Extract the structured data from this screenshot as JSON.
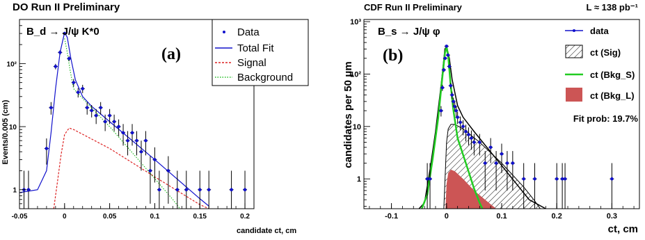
{
  "chart_data": [
    {
      "type": "scatter",
      "title": "DO Run II Preliminary",
      "process": "B_d → J/ψ K*0",
      "panel_label": "(a)",
      "xlabel": "candidate ct,  cm",
      "ylabel": "Events/0.005 (cm)",
      "x_scale": "linear",
      "y_scale": "log",
      "xlim": [
        -0.05,
        0.21
      ],
      "ylim": [
        0.5,
        500
      ],
      "x_ticks": [
        "-0.05",
        "0",
        "0.05",
        "0.1",
        "0.15",
        "0.2"
      ],
      "y_ticks": [
        "1",
        "10",
        "10²"
      ],
      "legend": [
        "Data",
        "Total Fit",
        "Signal",
        "Background"
      ],
      "legend_placement": "top-right",
      "series": [
        {
          "name": "Data",
          "kind": "points_with_errors",
          "color": "#1010cc",
          "x": [
            -0.045,
            -0.04,
            -0.02,
            -0.015,
            -0.01,
            -0.005,
            0.0,
            0.005,
            0.01,
            0.015,
            0.02,
            0.025,
            0.03,
            0.035,
            0.04,
            0.045,
            0.05,
            0.055,
            0.06,
            0.065,
            0.07,
            0.075,
            0.08,
            0.085,
            0.09,
            0.095,
            0.1,
            0.105,
            0.115,
            0.125,
            0.135,
            0.15,
            0.16,
            0.185,
            0.2
          ],
          "y": [
            1,
            1,
            4.5,
            20,
            90,
            150,
            300,
            120,
            50,
            35,
            40,
            20,
            18,
            15,
            20,
            12,
            15,
            12,
            10,
            8,
            6,
            8,
            6,
            4,
            6,
            2,
            3,
            1,
            2,
            1,
            1,
            1,
            1,
            1,
            1
          ],
          "yerr": [
            1,
            1,
            2,
            4.5,
            9,
            12,
            17,
            11,
            7,
            6,
            6,
            4.5,
            4,
            4,
            4.5,
            3.5,
            4,
            3.5,
            3,
            3,
            2.5,
            3,
            2.5,
            2,
            2.5,
            1.4,
            1.7,
            1,
            1.4,
            1,
            1,
            1,
            1,
            1,
            1
          ]
        },
        {
          "name": "Total Fit",
          "kind": "line",
          "color": "#1010cc",
          "x": [
            -0.05,
            -0.03,
            -0.02,
            -0.015,
            -0.01,
            -0.005,
            0.0,
            0.003,
            0.007,
            0.012,
            0.02,
            0.03,
            0.05,
            0.1,
            0.15,
            0.16
          ],
          "y": [
            0.9,
            1.0,
            2.0,
            8.0,
            40,
            150,
            310,
            260,
            120,
            55,
            30,
            21,
            12,
            3.0,
            0.72,
            0.55
          ]
        },
        {
          "name": "Signal",
          "kind": "line",
          "color": "#dd2222",
          "x": [
            -0.012,
            -0.008,
            -0.004,
            0.0,
            0.005,
            0.01,
            0.05,
            0.1,
            0.15,
            0.16
          ],
          "y": [
            0.5,
            1.3,
            3.5,
            7.5,
            9.5,
            9.0,
            4.5,
            1.6,
            0.58,
            0.5
          ]
        },
        {
          "name": "Background",
          "kind": "line",
          "color": "#22bb22",
          "x": [
            0.0,
            0.003,
            0.006,
            0.01,
            0.02,
            0.05,
            0.1,
            0.12,
            0.128
          ],
          "y": [
            250,
            150,
            80,
            40,
            28,
            10,
            1.5,
            0.7,
            0.5
          ]
        }
      ]
    },
    {
      "type": "scatter",
      "title": "CDF Run II Preliminary",
      "luminosity": "L ≈ 138 pb⁻¹",
      "process": "B_s → J/ψ φ",
      "panel_label": "(b)",
      "xlabel": "ct, cm",
      "ylabel": "candidates per 50   μm",
      "x_scale": "linear",
      "y_scale": "log",
      "xlim": [
        -0.15,
        0.35
      ],
      "ylim": [
        0.27,
        1100
      ],
      "x_ticks": [
        "-0.1",
        "0",
        "0.1",
        "0.2",
        "0.3"
      ],
      "y_ticks": [
        "1",
        "10",
        "10²",
        "10³"
      ],
      "legend": [
        "data",
        "ct (Sig)",
        "ct (Bkg_S)",
        "ct (Bkg_L)"
      ],
      "legend_placement": "right",
      "annotation": "Fit prob: 19.7%",
      "series": [
        {
          "name": "data",
          "kind": "points_with_errors",
          "color": "#1010cc",
          "x": [
            -0.035,
            -0.03,
            -0.01,
            -0.0075,
            -0.005,
            -0.0025,
            0.0,
            0.0025,
            0.005,
            0.0075,
            0.01,
            0.0125,
            0.015,
            0.0175,
            0.02,
            0.025,
            0.03,
            0.035,
            0.04,
            0.045,
            0.05,
            0.06,
            0.07,
            0.08,
            0.09,
            0.1,
            0.11,
            0.12,
            0.14,
            0.16,
            0.2,
            0.21,
            0.215,
            0.3
          ],
          "y": [
            1,
            1,
            20,
            55,
            120,
            200,
            340,
            230,
            140,
            60,
            40,
            30,
            24,
            20,
            15,
            12,
            10,
            8,
            7,
            6,
            5,
            5,
            2,
            4,
            2,
            3,
            2,
            2,
            1,
            1,
            1,
            1,
            1,
            1
          ],
          "yerr": [
            1,
            1,
            4.5,
            7.4,
            11,
            14,
            18,
            15,
            12,
            7.7,
            6.3,
            5.5,
            4.9,
            4.5,
            3.9,
            3.5,
            3.2,
            2.8,
            2.6,
            2.4,
            2.2,
            2.2,
            1.4,
            2.0,
            1.4,
            1.7,
            1.4,
            1.4,
            1,
            1,
            1,
            1,
            1,
            1
          ]
        },
        {
          "name": "Total fit",
          "kind": "line",
          "color": "#000000",
          "x": [
            -0.05,
            -0.04,
            -0.03,
            -0.02,
            -0.01,
            -0.003,
            0.0,
            0.005,
            0.01,
            0.02,
            0.03,
            0.05,
            0.1,
            0.15,
            0.18
          ],
          "y": [
            0.27,
            0.35,
            1.5,
            8,
            60,
            300,
            340,
            200,
            80,
            25,
            15,
            8,
            1.8,
            0.4,
            0.27
          ]
        },
        {
          "name": "ct (Sig)",
          "kind": "hatched_area",
          "color": "#000000",
          "x": [
            -0.005,
            0.0,
            0.003,
            0.008,
            0.015,
            0.03,
            0.06,
            0.1,
            0.14,
            0.16,
            0.17
          ],
          "y": [
            0.27,
            5,
            9,
            11,
            11,
            9,
            5,
            2,
            0.7,
            0.38,
            0.27
          ]
        },
        {
          "name": "ct (Bkg_S)",
          "kind": "line",
          "color": "#22cc22",
          "x": [
            -0.045,
            -0.035,
            -0.025,
            -0.015,
            -0.008,
            -0.003,
            0.0,
            0.003,
            0.007,
            0.012,
            0.02,
            0.035,
            0.05,
            0.06,
            0.065
          ],
          "y": [
            0.27,
            0.5,
            2.5,
            15,
            80,
            250,
            330,
            220,
            70,
            22,
            6,
            2,
            0.65,
            0.35,
            0.27
          ]
        },
        {
          "name": "ct (Bkg_L)",
          "kind": "filled_area",
          "color": "#cc5555",
          "x": [
            -0.002,
            0.0,
            0.003,
            0.008,
            0.015,
            0.03,
            0.05,
            0.07,
            0.09
          ],
          "y": [
            0.27,
            0.8,
            1.3,
            1.5,
            1.4,
            1.0,
            0.6,
            0.4,
            0.27
          ]
        }
      ]
    }
  ]
}
